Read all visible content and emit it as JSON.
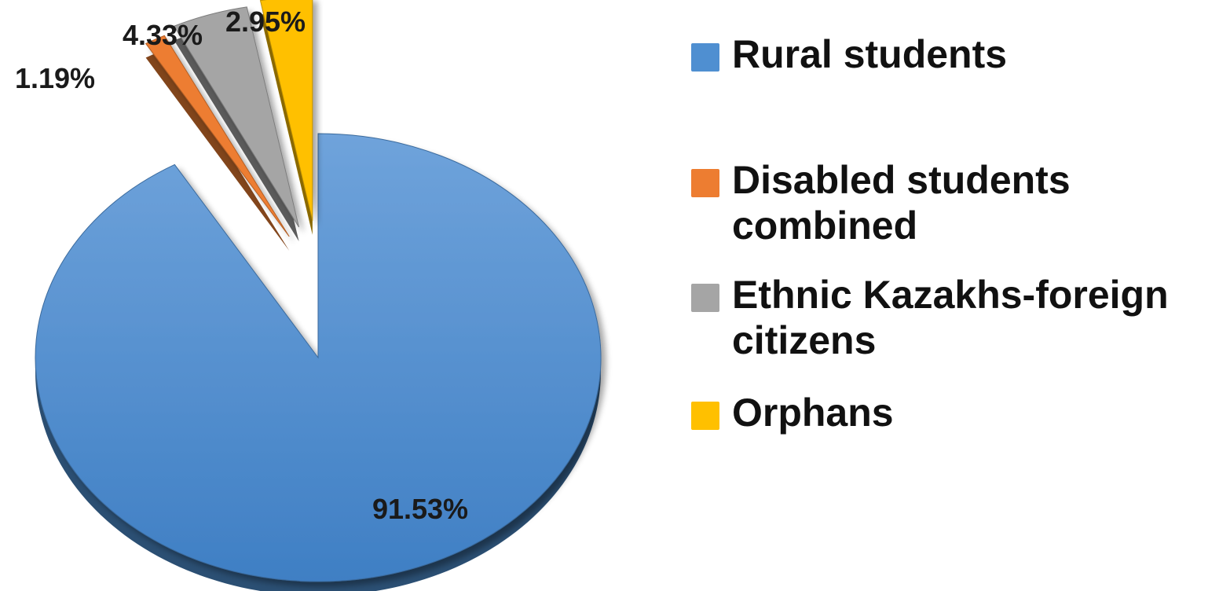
{
  "chart_data": {
    "type": "pie",
    "title": "",
    "exploded": true,
    "three_d": true,
    "legend_position": "right",
    "slices": [
      {
        "label": "Rural students",
        "value": 91.53,
        "value_label": "91.53%",
        "color": "#4f8fd1"
      },
      {
        "label": "Disabled students combined",
        "value": 1.19,
        "value_label": "1.19%",
        "color": "#ed7d31"
      },
      {
        "label": "Ethnic Kazakhs-foreign citizens",
        "value": 4.33,
        "value_label": "4.33%",
        "color": "#a5a5a5"
      },
      {
        "label": "Orphans",
        "value": 2.95,
        "value_label": "2.95%",
        "color": "#ffc000"
      }
    ]
  },
  "legend": {
    "items": [
      {
        "label": "Rural students",
        "color": "#4f8fd1"
      },
      {
        "label": "Disabled students combined",
        "color": "#ed7d31"
      },
      {
        "label": "Ethnic Kazakhs-foreign citizens",
        "color": "#a5a5a5"
      },
      {
        "label": "Orphans",
        "color": "#ffc000"
      }
    ]
  }
}
